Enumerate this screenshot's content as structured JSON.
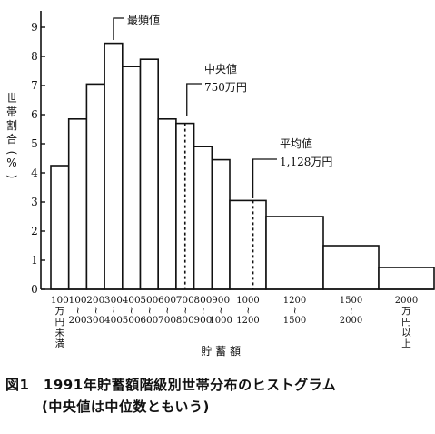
{
  "chart_data": {
    "type": "bar",
    "title": "",
    "ylabel": "世帯割合(%)",
    "xlabel": "貯 蓄 額",
    "ylim": [
      0,
      9
    ],
    "yticks": [
      "0",
      "1",
      "2",
      "3",
      "4",
      "5",
      "6",
      "7",
      "8",
      "9"
    ],
    "grid": false,
    "bins": [
      {
        "from": 0,
        "to": 100,
        "value": 4.25
      },
      {
        "from": 100,
        "to": 200,
        "value": 5.85
      },
      {
        "from": 200,
        "to": 300,
        "value": 7.05
      },
      {
        "from": 300,
        "to": 400,
        "value": 8.45
      },
      {
        "from": 400,
        "to": 500,
        "value": 7.65
      },
      {
        "from": 500,
        "to": 600,
        "value": 7.9
      },
      {
        "from": 600,
        "to": 700,
        "value": 5.85
      },
      {
        "from": 700,
        "to": 800,
        "value": 5.7
      },
      {
        "from": 800,
        "to": 900,
        "value": 4.9
      },
      {
        "from": 900,
        "to": 1000,
        "value": 4.45
      },
      {
        "from": 1000,
        "to": 1200,
        "value": 3.05
      },
      {
        "from": 1200,
        "to": 1500,
        "value": 2.5
      },
      {
        "from": 1500,
        "to": 2000,
        "value": 1.5
      },
      {
        "from": 2000,
        "to": 2600,
        "value": 0.75
      }
    ],
    "x_tick_labels": [
      {
        "pos": 50,
        "text": "100\n万\n円\n未\n満"
      },
      {
        "pos": 150,
        "text": "100\n〜\n200"
      },
      {
        "pos": 250,
        "text": "200\n〜\n300"
      },
      {
        "pos": 350,
        "text": "300\n〜\n400"
      },
      {
        "pos": 450,
        "text": "400\n〜\n500"
      },
      {
        "pos": 550,
        "text": "500\n〜\n600"
      },
      {
        "pos": 650,
        "text": "600\n〜\n700"
      },
      {
        "pos": 750,
        "text": "700\n〜\n800"
      },
      {
        "pos": 850,
        "text": "800\n〜\n900"
      },
      {
        "pos": 950,
        "text": "900\n〜\n1000"
      },
      {
        "pos": 1100,
        "text": "1000\n〜\n1200"
      },
      {
        "pos": 1350,
        "text": "1200\n〜\n1500"
      },
      {
        "pos": 1750,
        "text": "1500\n〜\n2000"
      },
      {
        "pos": 2300,
        "text": "2000\n万\n円\n以\n上"
      }
    ],
    "markers": [
      {
        "name": "中央値",
        "x": 750,
        "value_label": "750万円"
      },
      {
        "name": "平均値",
        "x": 1128,
        "value_label": "1,128万円"
      }
    ],
    "annotations": [
      {
        "text": "最頻値",
        "x": 350
      }
    ]
  },
  "caption": {
    "line1": "図1　1991年貯蓄額階級別世帯分布のヒストグラム",
    "line2": "(中央値は中位数ともいう)"
  }
}
